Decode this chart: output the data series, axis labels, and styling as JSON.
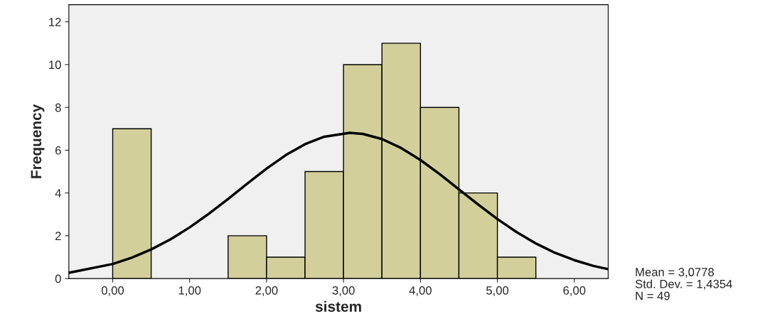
{
  "chart_data": {
    "type": "histogram",
    "xlabel": "sistem",
    "ylabel": "Frequency",
    "bins": [
      0,
      0.5,
      1,
      1.5,
      2,
      2.5,
      3,
      3.5,
      4,
      4.5,
      5,
      5.5
    ],
    "values": [
      7,
      0,
      0,
      2,
      1,
      5,
      10,
      11,
      8,
      4,
      1
    ],
    "color": "#d3cf9b",
    "series": [
      {
        "type": "line",
        "color": "#000000",
        "x": [
          -0.57,
          0,
          0.25,
          0.5,
          0.75,
          1,
          1.25,
          1.5,
          1.75,
          2,
          2.25,
          2.5,
          2.75,
          3.08,
          3.25,
          3.5,
          3.75,
          4,
          4.25,
          4.5,
          4.75,
          5,
          5.25,
          5.5,
          5.75,
          6,
          6.25,
          6.44
        ],
        "values": [
          0.27,
          0.68,
          0.98,
          1.36,
          1.83,
          2.39,
          3.03,
          3.72,
          4.44,
          5.14,
          5.77,
          6.28,
          6.63,
          6.81,
          6.76,
          6.52,
          6.1,
          5.54,
          4.88,
          4.17,
          3.46,
          2.78,
          2.17,
          1.64,
          1.2,
          0.86,
          0.59,
          0.44
        ]
      }
    ],
    "xlim": [
      -0.57,
      6.44
    ],
    "ylim": [
      0,
      12.8
    ],
    "xticks": [
      {
        "value": 0,
        "label": "0,00"
      },
      {
        "value": 1,
        "label": "1,00"
      },
      {
        "value": 2,
        "label": "2,00"
      },
      {
        "value": 3,
        "label": "3,00"
      },
      {
        "value": 4,
        "label": "4,00"
      },
      {
        "value": 5,
        "label": "5,00"
      },
      {
        "value": 6,
        "label": "6,00"
      }
    ],
    "yticks": [
      0,
      2,
      4,
      6,
      8,
      10,
      12
    ],
    "grid": false,
    "legend": false,
    "annotations": [
      "Mean = 3,0778",
      "Std. Dev. = 1,4354",
      "N = 49"
    ]
  }
}
